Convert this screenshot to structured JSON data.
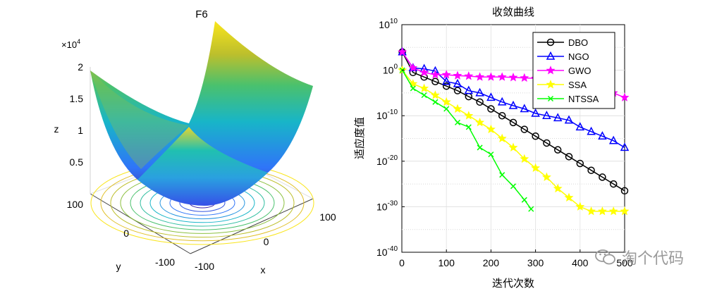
{
  "chart_data": [
    {
      "type": "surface",
      "title": "F6",
      "xlabel": "x",
      "ylabel": "y",
      "zlabel": "z",
      "z_multiplier_label": "×10",
      "z_multiplier_exponent": "4",
      "x_ticks": [
        "-100",
        "0",
        "100"
      ],
      "y_ticks": [
        "-100",
        "0",
        "100"
      ],
      "z_ticks": [
        "0.5",
        "1",
        "1.5",
        "2"
      ],
      "xlim": [
        -100,
        100
      ],
      "ylim": [
        -100,
        100
      ],
      "zlim": [
        0,
        20000
      ],
      "colormap": [
        "#3e26a8",
        "#2f75f8",
        "#18b5c8",
        "#4ac16d",
        "#bdbf2c",
        "#f9e51c"
      ]
    },
    {
      "type": "line",
      "title": "收敛曲线",
      "xlabel": "迭代次数",
      "ylabel": "适应度值",
      "yscale": "log",
      "xlim": [
        0,
        500
      ],
      "ylim_exponent": [
        -40,
        10
      ],
      "x_ticks": [
        "0",
        "100",
        "200",
        "300",
        "400",
        "500"
      ],
      "y_tick_exponents": [
        -40,
        -30,
        -20,
        -10,
        0,
        10
      ],
      "y_tick_base": "10",
      "grid": "on",
      "legend_placement": "top-right",
      "series": [
        {
          "name": "DBO",
          "color": "#000000",
          "marker": "circle",
          "x": [
            1,
            25,
            50,
            75,
            100,
            125,
            150,
            175,
            200,
            225,
            250,
            275,
            300,
            325,
            350,
            375,
            400,
            425,
            450,
            475,
            500
          ],
          "log10y": [
            4,
            -0.5,
            -1.5,
            -2.5,
            -3.5,
            -4.5,
            -5.8,
            -7,
            -8.5,
            -10,
            -11.5,
            -13,
            -14.5,
            -16,
            -17.5,
            -19,
            -20.5,
            -22,
            -23.5,
            -25,
            -26.5
          ]
        },
        {
          "name": "NGO",
          "color": "#0000ff",
          "marker": "triangle",
          "x": [
            1,
            25,
            50,
            75,
            100,
            125,
            150,
            175,
            200,
            225,
            250,
            275,
            300,
            325,
            350,
            375,
            400,
            425,
            450,
            475,
            500
          ],
          "log10y": [
            4,
            0.5,
            0.3,
            -0.2,
            -2.5,
            -3,
            -4.5,
            -5,
            -6,
            -7,
            -7.8,
            -8.5,
            -9.5,
            -10,
            -10.5,
            -11,
            -12.5,
            -13.5,
            -14.5,
            -15.5,
            -17
          ]
        },
        {
          "name": "GWO",
          "color": "#ff00ff",
          "marker": "star",
          "x": [
            1,
            25,
            50,
            75,
            100,
            125,
            150,
            175,
            200,
            225,
            250,
            275,
            300,
            325,
            350,
            375,
            400,
            425,
            450,
            475,
            500
          ],
          "log10y": [
            4,
            0.5,
            -0.5,
            -1,
            -1,
            -1.2,
            -1.3,
            -1.5,
            -1.5,
            -1.5,
            -1.6,
            -1.7,
            -1.8,
            -2,
            -2.2,
            -2.5,
            -3,
            -3.5,
            -4,
            -5,
            -6
          ]
        },
        {
          "name": "SSA",
          "color": "#ffff00",
          "marker": "star",
          "x": [
            1,
            25,
            50,
            75,
            100,
            125,
            150,
            175,
            200,
            225,
            250,
            275,
            300,
            325,
            350,
            375,
            400,
            425,
            450,
            475,
            500
          ],
          "log10y": [
            0,
            -3,
            -4,
            -5.5,
            -7,
            -8.5,
            -10,
            -11.5,
            -13,
            -15,
            -17,
            -19.5,
            -21.5,
            -23.5,
            -26,
            -28,
            -30,
            -31,
            -31,
            -31,
            -31
          ]
        },
        {
          "name": "NTSSA",
          "color": "#00ff00",
          "marker": "x",
          "x": [
            1,
            25,
            50,
            75,
            100,
            125,
            150,
            175,
            200,
            225,
            250,
            275,
            290
          ],
          "log10y": [
            0,
            -4,
            -5.5,
            -7,
            -8.5,
            -11.5,
            -12.5,
            -17,
            -18.5,
            -23,
            -25.5,
            -28.5,
            -30.5
          ]
        }
      ]
    }
  ],
  "watermark": {
    "text": "淘个代码",
    "icon": "wechat-icon"
  }
}
